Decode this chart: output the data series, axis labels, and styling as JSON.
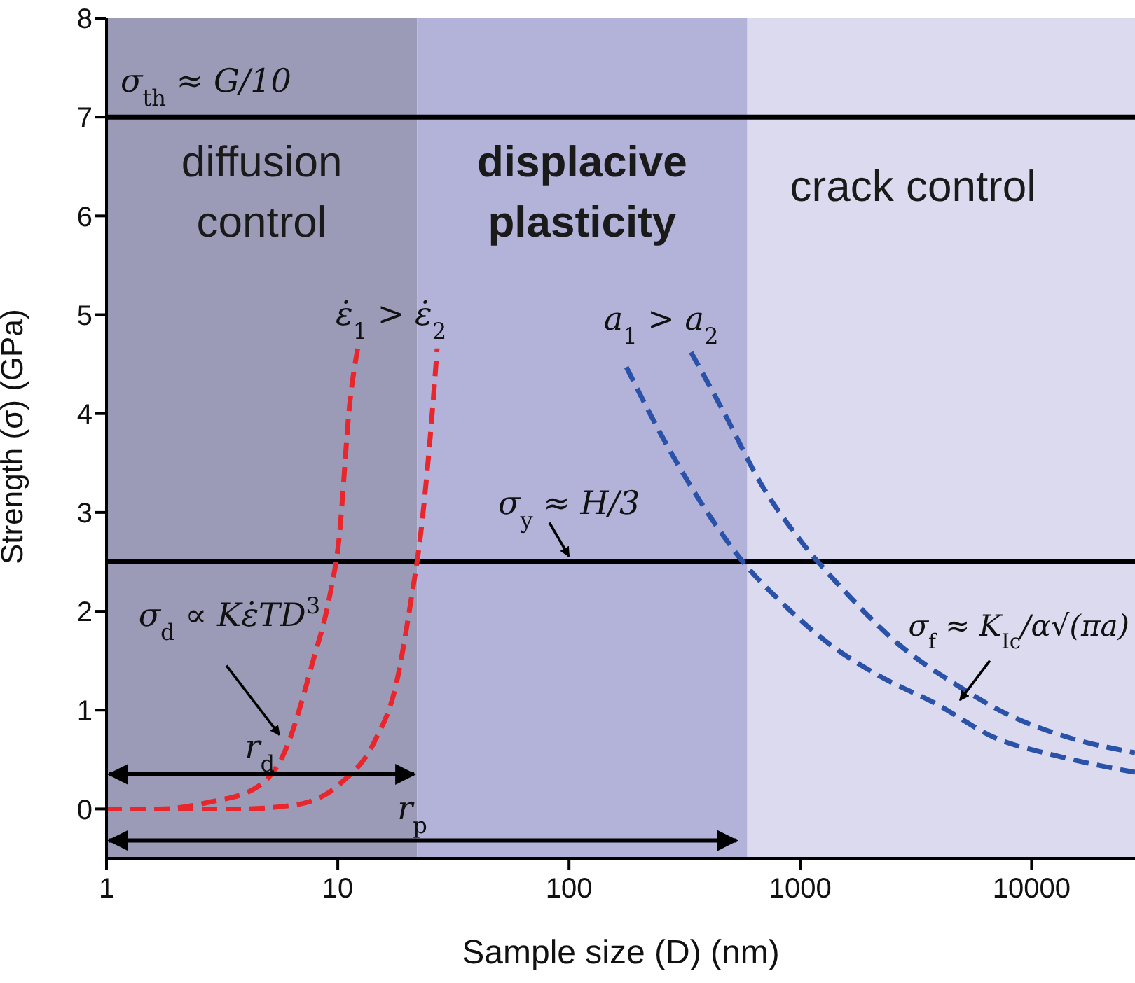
{
  "chart_data": {
    "type": "line",
    "xlabel": "Sample size (D) (nm)",
    "ylabel": "Strength (σ) (GPa)",
    "log": "x",
    "xlim": [
      1,
      28000
    ],
    "xticks": [
      1,
      10,
      100,
      1000,
      10000
    ],
    "ylim": [
      -0.5,
      8
    ],
    "yticks": [
      0,
      1,
      2,
      3,
      4,
      5,
      6,
      7,
      8
    ],
    "line_style": "dashed",
    "marker": "none",
    "series": [
      {
        "color": "#e8262b",
        "x": [
          1,
          1.7,
          2.8,
          4.4,
          5.9,
          7.8,
          9.2,
          10.1,
          11.3,
          12.2
        ],
        "values": [
          0,
          0,
          0.07,
          0.21,
          0.58,
          1.49,
          2.14,
          2.71,
          4.13,
          4.66
        ]
      },
      {
        "color": "#e8262b",
        "x": [
          1,
          2.1,
          3.7,
          6.5,
          10.3,
          14.4,
          18,
          20.7,
          22.8,
          25.1,
          26.9
        ],
        "values": [
          0,
          0,
          0,
          0.04,
          0.26,
          0.68,
          1.29,
          2.1,
          2.77,
          3.76,
          4.66
        ]
      },
      {
        "color": "#2a52a8",
        "x": [
          177,
          251,
          372,
          589,
          822,
          1250,
          2180,
          3820,
          6950,
          12700,
          28000
        ],
        "values": [
          4.47,
          3.78,
          3.1,
          2.45,
          2.1,
          1.72,
          1.35,
          1.07,
          0.72,
          0.54,
          0.37
        ]
      },
      {
        "color": "#2a52a8",
        "x": [
          337,
          470,
          676,
          1030,
          1560,
          2620,
          4770,
          7670,
          14600,
          28000
        ],
        "values": [
          4.62,
          4,
          3.29,
          2.68,
          2.2,
          1.68,
          1.25,
          0.97,
          0.72,
          0.57
        ]
      }
    ],
    "bands": [
      {
        "axis": "x",
        "from": 1,
        "to": 22,
        "label": "diffusion control",
        "color": "#9b9bb8"
      },
      {
        "axis": "x",
        "from": 22,
        "to": 590,
        "label": "displacive plasticity",
        "color": "#b3b3da"
      },
      {
        "axis": "x",
        "from": 590,
        "to": 28000,
        "label": "crack control",
        "color": "#dcdaee"
      }
    ],
    "ref_lines": [
      {
        "axis": "y",
        "value": 7,
        "label": "σ$_{th}$ ≈ G/10",
        "color": "#000000"
      },
      {
        "axis": "y",
        "value": 2.5,
        "label": "σ$_{y}$ ≈ H/3",
        "color": "#000000"
      }
    ],
    "annotations": [
      "ε̇$_{1}$ > ε̇$_{2}$",
      "a$_{1}$ > a$_{2}$",
      "σ$_{d}$ ∝ Kε̇TD$^{3}$",
      "σ$_{f}$ ≈ K$_{Ic}$/α√(πa)",
      "r$_{d}$",
      "r$_{p}$"
    ]
  }
}
